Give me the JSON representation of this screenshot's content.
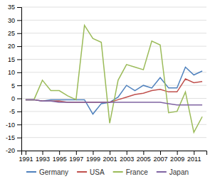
{
  "chart_data": {
    "type": "line",
    "x": [
      1991,
      1992,
      1993,
      1994,
      1995,
      1996,
      1997,
      1998,
      1999,
      2000,
      2001,
      2002,
      2003,
      2004,
      2005,
      2006,
      2007,
      2008,
      2009,
      2010,
      2011,
      2012
    ],
    "series": [
      {
        "name": "Germany",
        "color": "#4f81bd",
        "values": [
          -0.5,
          -0.5,
          -1.0,
          -0.5,
          -0.5,
          -0.5,
          -0.5,
          -0.5,
          -6.0,
          -2.0,
          -1.5,
          0.5,
          5.0,
          3.0,
          5.0,
          4.0,
          8.0,
          4.0,
          4.0,
          12.0,
          9.0,
          10.5
        ]
      },
      {
        "name": "USA",
        "color": "#c0504d",
        "values": [
          -0.5,
          -0.5,
          -1.0,
          -1.0,
          -1.0,
          -1.5,
          -1.5,
          -1.5,
          -1.5,
          -1.5,
          -1.5,
          -0.5,
          0.5,
          1.5,
          2.0,
          3.0,
          3.5,
          2.5,
          2.5,
          7.5,
          6.0,
          6.5
        ]
      },
      {
        "name": "France",
        "color": "#9bbb59",
        "values": [
          -0.5,
          -0.5,
          7.0,
          3.0,
          3.0,
          1.0,
          -0.5,
          28.0,
          23.0,
          21.5,
          -9.5,
          7.0,
          13.0,
          12.0,
          11.0,
          22.0,
          20.5,
          -5.5,
          -5.0,
          2.5,
          -13.0,
          -7.0
        ]
      },
      {
        "name": "Japan",
        "color": "#8064a2",
        "values": [
          -0.5,
          -0.5,
          -1.0,
          -1.0,
          -1.5,
          -1.5,
          -1.5,
          -1.5,
          -1.5,
          -1.5,
          -1.5,
          -1.5,
          -1.5,
          -1.5,
          -1.5,
          -1.5,
          -1.5,
          -2.0,
          -2.5,
          -2.5,
          -2.5,
          -2.5
        ]
      }
    ],
    "xlim": [
      1990.5,
      2012.5
    ],
    "xticks": [
      1991,
      1993,
      1995,
      1997,
      1999,
      2001,
      2003,
      2005,
      2007,
      2009,
      2011
    ],
    "ylim": [
      -20,
      35
    ],
    "yticks": [
      -20,
      -15,
      -10,
      -5,
      0,
      5,
      10,
      15,
      20,
      25,
      30,
      35
    ],
    "grid": true,
    "legend": "bottom"
  }
}
